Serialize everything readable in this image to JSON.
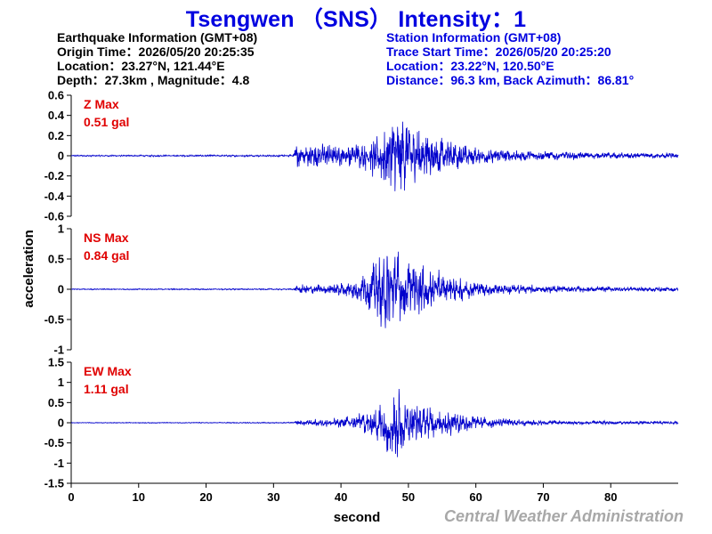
{
  "header": {
    "title": "Tsengwen （SNS） Intensity：1",
    "earthquake": {
      "heading": "Earthquake Information  (GMT+08)",
      "origin_time": "Origin Time：2026/05/20 20:25:35",
      "location": "Location：23.27°N, 121.44°E",
      "depth_mag": "Depth：27.3km , Magnitude：4.8"
    },
    "station": {
      "heading": "Station Information  (GMT+08)",
      "trace_start": "Trace Start Time：2026/05/20 20:25:20",
      "location": "Location：23.22°N, 120.50°E",
      "distance": "Distance：96.3 km, Back Azimuth：86.81°"
    }
  },
  "colors": {
    "title": "#0000e0",
    "trace": "#0000cc",
    "max_label": "#e00000",
    "credit": "#a8a8a8",
    "axis": "#000000"
  },
  "chart_data": {
    "type": "line",
    "xlabel": "second",
    "ylabel": "acceleration",
    "xlim": [
      0,
      90
    ],
    "xticks": [
      0,
      10,
      20,
      30,
      40,
      50,
      60,
      70,
      80
    ],
    "credit": "Central Weather Administration",
    "panels": [
      {
        "component": "Z",
        "max_label": "Z Max",
        "max_value": "0.51 gal",
        "ylim": [
          -0.6,
          0.6
        ],
        "yticks": [
          0.6,
          0.4,
          0.2,
          0,
          -0.2,
          -0.4,
          -0.6
        ],
        "ytick_labels": [
          "0.6",
          "0.4",
          "0.2",
          "0",
          "-0.2",
          "-0.4",
          "-0.6"
        ],
        "envelope": [
          [
            0,
            0.008
          ],
          [
            32.9,
            0.01
          ],
          [
            33.2,
            0.16
          ],
          [
            36,
            0.14
          ],
          [
            40,
            0.12
          ],
          [
            43,
            0.14
          ],
          [
            45.5,
            0.26
          ],
          [
            47,
            0.4
          ],
          [
            48.5,
            0.48
          ],
          [
            50,
            0.45
          ],
          [
            51,
            0.36
          ],
          [
            53,
            0.25
          ],
          [
            56,
            0.17
          ],
          [
            60,
            0.1
          ],
          [
            65,
            0.07
          ],
          [
            70,
            0.05
          ],
          [
            80,
            0.035
          ],
          [
            90,
            0.03
          ]
        ]
      },
      {
        "component": "NS",
        "max_label": "NS Max",
        "max_value": "0.84 gal",
        "ylim": [
          -1,
          1
        ],
        "yticks": [
          1,
          0.5,
          0,
          -0.5,
          -1
        ],
        "ytick_labels": [
          "1",
          "0.5",
          "0",
          "-0.5",
          "-1"
        ],
        "envelope": [
          [
            0,
            0.01
          ],
          [
            33,
            0.012
          ],
          [
            33.4,
            0.08
          ],
          [
            38,
            0.1
          ],
          [
            42,
            0.18
          ],
          [
            45,
            0.5
          ],
          [
            46.5,
            0.8
          ],
          [
            48,
            0.7
          ],
          [
            50,
            0.55
          ],
          [
            53,
            0.4
          ],
          [
            56,
            0.25
          ],
          [
            60,
            0.15
          ],
          [
            65,
            0.1
          ],
          [
            70,
            0.07
          ],
          [
            80,
            0.05
          ],
          [
            90,
            0.04
          ]
        ]
      },
      {
        "component": "EW",
        "max_label": "EW Max",
        "max_value": "1.11 gal",
        "ylim": [
          -1.5,
          1.5
        ],
        "yticks": [
          1.5,
          1,
          0.5,
          0,
          -0.5,
          -1,
          -1.5
        ],
        "ytick_labels": [
          "1.5",
          "1",
          "0.5",
          "0",
          "-0.5",
          "-1",
          "-1.5"
        ],
        "envelope": [
          [
            0,
            0.01
          ],
          [
            33,
            0.015
          ],
          [
            33.5,
            0.08
          ],
          [
            38,
            0.1
          ],
          [
            42,
            0.2
          ],
          [
            45,
            0.45
          ],
          [
            47,
            0.9
          ],
          [
            48.5,
            1.1
          ],
          [
            50,
            0.6
          ],
          [
            53,
            0.45
          ],
          [
            56,
            0.35
          ],
          [
            60,
            0.18
          ],
          [
            65,
            0.1
          ],
          [
            70,
            0.07
          ],
          [
            80,
            0.05
          ],
          [
            90,
            0.04
          ]
        ]
      }
    ]
  }
}
